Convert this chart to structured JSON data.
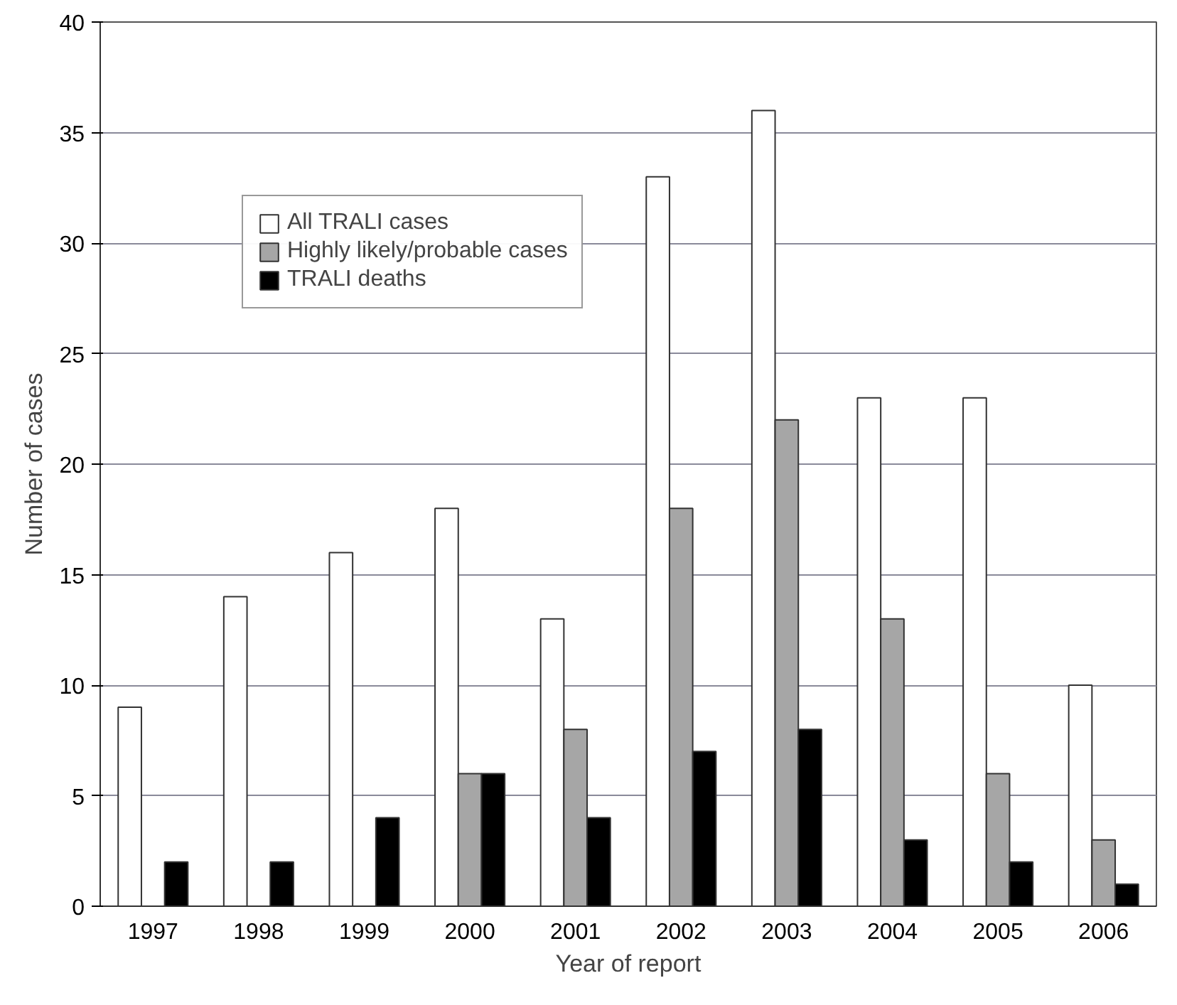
{
  "chart_data": {
    "type": "bar",
    "xlabel": "Year of report",
    "ylabel": "Number of cases",
    "categories": [
      "1997",
      "1998",
      "1999",
      "2000",
      "2001",
      "2002",
      "2003",
      "2004",
      "2005",
      "2006"
    ],
    "series": [
      {
        "name": "All TRALI cases",
        "color": "#ffffff",
        "values": [
          9,
          14,
          16,
          18,
          13,
          33,
          36,
          23,
          23,
          10
        ]
      },
      {
        "name": "Highly likely/probable cases",
        "color": "#a6a6a6",
        "values": [
          null,
          null,
          null,
          6,
          8,
          18,
          22,
          13,
          6,
          3
        ]
      },
      {
        "name": "TRALI deaths",
        "color": "#000000",
        "values": [
          2,
          2,
          4,
          6,
          4,
          7,
          8,
          3,
          2,
          1
        ]
      }
    ],
    "ylim": [
      0,
      40
    ],
    "yticks": [
      0,
      5,
      10,
      15,
      20,
      25,
      30,
      35,
      40
    ],
    "grid": "y",
    "legend": "top left"
  }
}
